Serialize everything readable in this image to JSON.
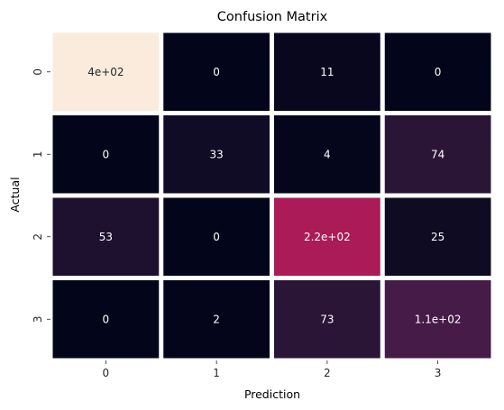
{
  "chart_data": {
    "type": "heatmap",
    "title": "Confusion Matrix",
    "xlabel": "Prediction",
    "ylabel": "Actual",
    "x_categories": [
      "0",
      "1",
      "2",
      "3"
    ],
    "y_categories": [
      "0",
      "1",
      "2",
      "3"
    ],
    "values": [
      [
        400,
        0,
        11,
        0
      ],
      [
        0,
        33,
        4,
        74
      ],
      [
        53,
        0,
        220,
        25
      ],
      [
        0,
        2,
        73,
        110
      ]
    ],
    "annotations": [
      [
        "4e+02",
        "0",
        "11",
        "0"
      ],
      [
        "0",
        "33",
        "4",
        "74"
      ],
      [
        "53",
        "0",
        "2.2e+02",
        "25"
      ],
      [
        "0",
        "2",
        "73",
        "1.1e+02"
      ]
    ],
    "colormap": "rocket",
    "colorbar": false,
    "cell_gap_color": "#ffffff",
    "vmin": 0,
    "vmax": 400
  }
}
